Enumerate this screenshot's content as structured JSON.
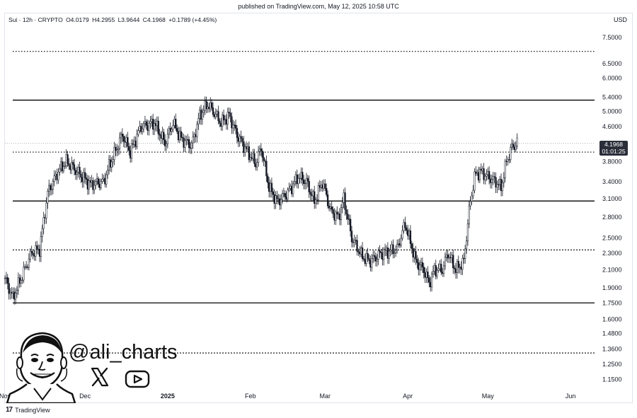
{
  "header": {
    "published": "published on TradingView.com, May 12, 2025 10:58 UTC"
  },
  "legend": {
    "symbol": "Sui · 12h · CRYPTO",
    "open": "O4.0179",
    "high": "H4.2955",
    "low": "L3.9644",
    "close": "C4.1968",
    "change": "+0.1789 (+4.45%)"
  },
  "currency": "USD",
  "last_price": {
    "value": "4.1968",
    "countdown": "01:01:25"
  },
  "footer": {
    "logo_text": "TradingView",
    "logo_mark": "17"
  },
  "branding": {
    "handle": "@ali_charts",
    "icons": [
      "x-logo-icon",
      "youtube-icon",
      "avatar-icon"
    ]
  },
  "colors": {
    "candle": "#131722",
    "background": "#ffffff",
    "level_line": "#000000"
  },
  "chart_data": {
    "type": "candlestick",
    "scale": "log",
    "ylim": [
      1.1,
      8.2
    ],
    "y_ticks": [
      7.5,
      6.5,
      6.0,
      5.4,
      5.0,
      4.6,
      3.8,
      3.4,
      3.1,
      2.8,
      2.5,
      2.3,
      2.1,
      1.9,
      1.75,
      1.6,
      1.48,
      1.36,
      1.25,
      1.15
    ],
    "y_tick_labels": [
      "7.5000",
      "6.5000",
      "6.0000",
      "5.4000",
      "5.0000",
      "4.6000",
      "3.8000",
      "3.4000",
      "3.1000",
      "2.8000",
      "2.5000",
      "2.3000",
      "2.1000",
      "1.9000",
      "1.7500",
      "1.6000",
      "1.4800",
      "1.3600",
      "1.2500",
      "1.1500"
    ],
    "x_tick_labels": [
      "Nov",
      "Dec",
      "2025",
      "Feb",
      "Mar",
      "Apr",
      "May",
      "Jun"
    ],
    "x_range": [
      "2024-11-01",
      "2025-06-10"
    ],
    "levels": [
      {
        "price": 6.95,
        "style": "dotted"
      },
      {
        "price": 5.32,
        "style": "solid"
      },
      {
        "price": 4.0,
        "style": "dotted"
      },
      {
        "price": 3.06,
        "style": "solid"
      },
      {
        "price": 2.34,
        "style": "dashed"
      },
      {
        "price": 1.75,
        "style": "solid"
      },
      {
        "price": 1.33,
        "style": "dashed"
      }
    ],
    "anchors": [
      [
        "2024-11-01",
        2.0
      ],
      [
        "2024-11-04",
        1.8
      ],
      [
        "2024-11-07",
        2.0
      ],
      [
        "2024-11-11",
        2.3
      ],
      [
        "2024-11-14",
        2.35
      ],
      [
        "2024-11-17",
        3.2
      ],
      [
        "2024-11-21",
        3.6
      ],
      [
        "2024-11-24",
        3.8
      ],
      [
        "2024-11-30",
        3.5
      ],
      [
        "2024-12-03",
        3.35
      ],
      [
        "2024-12-08",
        3.4
      ],
      [
        "2024-12-10",
        3.7
      ],
      [
        "2024-12-15",
        4.4
      ],
      [
        "2024-12-18",
        4.0
      ],
      [
        "2024-12-22",
        4.6
      ],
      [
        "2024-12-27",
        4.7
      ],
      [
        "2024-12-31",
        4.2
      ],
      [
        "2025-01-03",
        4.7
      ],
      [
        "2025-01-06",
        4.3
      ],
      [
        "2025-01-10",
        4.15
      ],
      [
        "2025-01-13",
        4.9
      ],
      [
        "2025-01-16",
        5.2
      ],
      [
        "2025-01-18",
        5.0
      ],
      [
        "2025-01-21",
        4.7
      ],
      [
        "2025-01-24",
        4.9
      ],
      [
        "2025-01-27",
        4.4
      ],
      [
        "2025-01-31",
        4.0
      ],
      [
        "2025-02-03",
        3.75
      ],
      [
        "2025-02-05",
        4.1
      ],
      [
        "2025-02-08",
        3.3
      ],
      [
        "2025-02-11",
        3.05
      ],
      [
        "2025-02-15",
        3.2
      ],
      [
        "2025-02-19",
        3.5
      ],
      [
        "2025-02-22",
        3.4
      ],
      [
        "2025-02-25",
        3.05
      ],
      [
        "2025-02-28",
        3.4
      ],
      [
        "2025-03-03",
        2.9
      ],
      [
        "2025-03-06",
        2.8
      ],
      [
        "2025-03-08",
        3.1
      ],
      [
        "2025-03-11",
        2.5
      ],
      [
        "2025-03-15",
        2.25
      ],
      [
        "2025-03-18",
        2.2
      ],
      [
        "2025-03-22",
        2.3
      ],
      [
        "2025-03-28",
        2.35
      ],
      [
        "2025-03-31",
        2.7
      ],
      [
        "2025-04-04",
        2.2
      ],
      [
        "2025-04-07",
        2.1
      ],
      [
        "2025-04-09",
        1.95
      ],
      [
        "2025-04-11",
        2.1
      ],
      [
        "2025-04-14",
        2.1
      ],
      [
        "2025-04-16",
        2.3
      ],
      [
        "2025-04-19",
        2.1
      ],
      [
        "2025-04-22",
        2.2
      ],
      [
        "2025-04-24",
        2.9
      ],
      [
        "2025-04-26",
        3.5
      ],
      [
        "2025-04-28",
        3.6
      ],
      [
        "2025-05-01",
        3.5
      ],
      [
        "2025-05-04",
        3.4
      ],
      [
        "2025-05-06",
        3.3
      ],
      [
        "2025-05-08",
        3.8
      ],
      [
        "2025-05-10",
        4.1
      ],
      [
        "2025-05-12",
        4.2
      ]
    ]
  }
}
